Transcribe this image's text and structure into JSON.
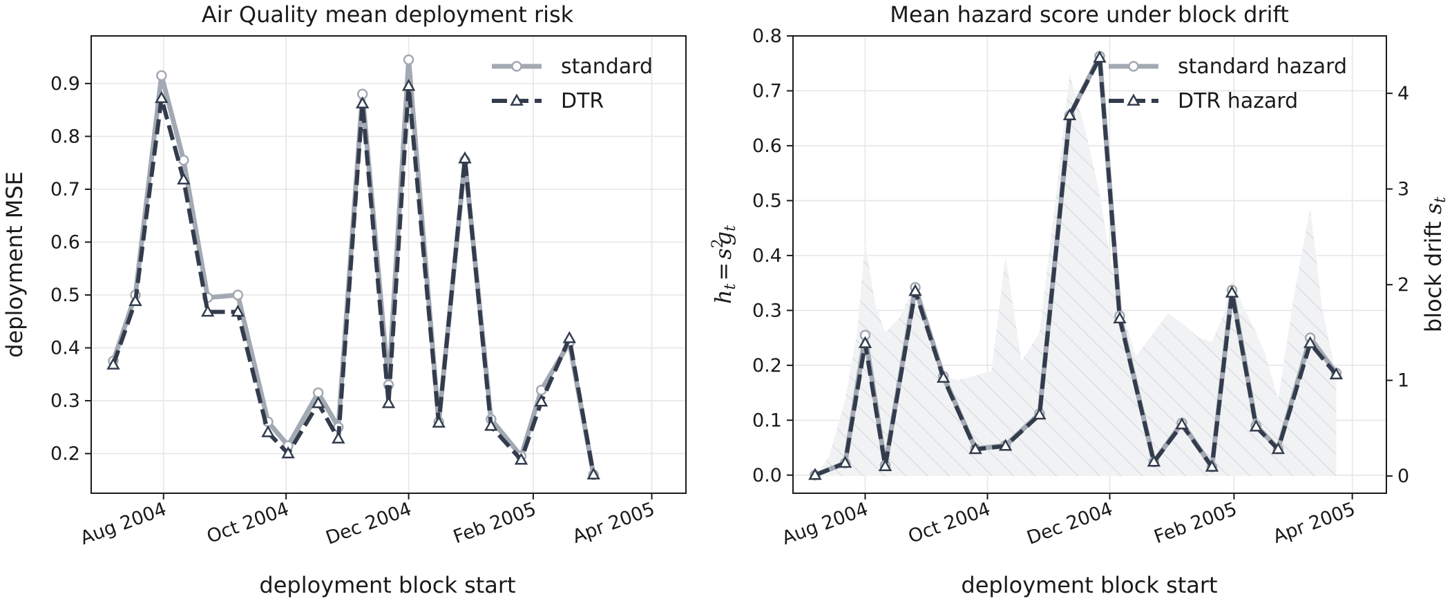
{
  "chart_data": [
    {
      "type": "line",
      "title": "Air Quality mean deployment risk",
      "xlabel": "deployment block start",
      "ylabel": "deployment MSE",
      "x_tick_labels": [
        "Aug 2004",
        "Oct 2004",
        "Dec 2004",
        "Feb 2005",
        "Apr 2005"
      ],
      "x_tick_dates": [
        "2004-08-01",
        "2004-10-01",
        "2004-12-01",
        "2005-02-01",
        "2005-04-01"
      ],
      "xlim": [
        "2004-06-26",
        "2005-04-18"
      ],
      "ylim": [
        0.125,
        0.99
      ],
      "y_ticks": [
        0.2,
        0.3,
        0.4,
        0.5,
        0.6,
        0.7,
        0.8,
        0.9
      ],
      "grid": true,
      "legend": "top-right",
      "series": [
        {
          "name": "standard",
          "color": "#a3a9b3",
          "marker": "circle",
          "dash": "solid",
          "x": [
            "2004-07-07",
            "2004-07-18",
            "2004-07-31",
            "2004-08-11",
            "2004-08-23",
            "2004-09-07",
            "2004-09-22",
            "2004-10-02",
            "2004-10-17",
            "2004-10-27",
            "2004-11-08",
            "2004-11-21",
            "2004-12-01",
            "2004-12-16",
            "2004-12-29",
            "2005-01-11",
            "2005-01-26",
            "2005-02-05",
            "2005-02-19",
            "2005-03-03",
            "2005-03-16",
            "2005-03-30"
          ],
          "y": [
            0.375,
            0.5,
            0.915,
            0.755,
            0.495,
            0.5,
            0.26,
            0.215,
            0.315,
            0.25,
            0.88,
            0.33,
            0.945,
            0.26,
            0.755,
            0.265,
            0.195,
            0.32,
            0.41,
            0.16,
            null,
            null
          ]
        },
        {
          "name": "DTR",
          "color": "#323c4c",
          "marker": "triangle",
          "dash": "dashed",
          "x": [
            "2004-07-07",
            "2004-07-18",
            "2004-07-31",
            "2004-08-11",
            "2004-08-23",
            "2004-09-07",
            "2004-09-22",
            "2004-10-02",
            "2004-10-17",
            "2004-10-27",
            "2004-11-08",
            "2004-11-21",
            "2004-12-01",
            "2004-12-16",
            "2004-12-29",
            "2005-01-11",
            "2005-01-26",
            "2005-02-05",
            "2005-02-19",
            "2005-03-03",
            "2005-03-16",
            "2005-03-30"
          ],
          "y": [
            0.368,
            0.488,
            0.872,
            0.718,
            0.468,
            0.468,
            0.24,
            0.2,
            0.295,
            0.228,
            0.862,
            0.295,
            0.895,
            0.258,
            0.758,
            0.252,
            0.188,
            0.298,
            0.418,
            0.16,
            null,
            null
          ]
        }
      ]
    },
    {
      "type": "line",
      "title": "Mean hazard score under block drift",
      "xlabel": "deployment block start",
      "ylabel": "h_t = s_t^2 g_t",
      "ylabel_parts": {
        "h": "h",
        "t": "t",
        "eq": "=",
        "s": "s",
        "sq": "2",
        "g": "g"
      },
      "y2label": "block drift s_t",
      "y2label_parts": {
        "text": "block drift ",
        "s": "s",
        "t": "t"
      },
      "x_tick_labels": [
        "Aug 2004",
        "Oct 2004",
        "Dec 2004",
        "Feb 2005",
        "Apr 2005"
      ],
      "x_tick_dates": [
        "2004-08-01",
        "2004-10-01",
        "2004-12-01",
        "2005-02-01",
        "2005-04-01"
      ],
      "xlim": [
        "2004-06-26",
        "2005-04-18"
      ],
      "ylim": [
        -0.033,
        0.8
      ],
      "y_ticks": [
        0.0,
        0.1,
        0.2,
        0.3,
        0.4,
        0.5,
        0.6,
        0.7,
        0.8
      ],
      "y2lim": [
        -0.18,
        4.6
      ],
      "y2_ticks": [
        0,
        1,
        2,
        3,
        4
      ],
      "grid": true,
      "legend": "top-right",
      "series": [
        {
          "name": "standard hazard",
          "color": "#a3a9b3",
          "marker": "circle",
          "dash": "solid",
          "x": [
            "2004-07-07",
            "2004-07-22",
            "2004-08-01",
            "2004-08-11",
            "2004-08-26",
            "2004-09-09",
            "2004-09-25",
            "2004-10-10",
            "2004-10-27",
            "2004-11-11",
            "2004-11-26",
            "2004-12-06",
            "2004-12-23",
            "2005-01-06",
            "2005-01-21",
            "2005-01-31",
            "2005-02-12",
            "2005-02-23",
            "2005-03-11",
            "2005-03-24"
          ],
          "y": [
            0.0,
            0.022,
            0.255,
            0.018,
            0.342,
            0.18,
            0.048,
            0.054,
            0.112,
            0.655,
            0.763,
            0.29,
            0.024,
            0.095,
            0.015,
            0.337,
            0.09,
            0.048,
            0.25,
            0.186
          ]
        },
        {
          "name": "DTR hazard",
          "color": "#323c4c",
          "marker": "triangle",
          "dash": "dashed",
          "x": [
            "2004-07-07",
            "2004-07-22",
            "2004-08-01",
            "2004-08-11",
            "2004-08-26",
            "2004-09-09",
            "2004-09-25",
            "2004-10-10",
            "2004-10-27",
            "2004-11-11",
            "2004-11-26",
            "2004-12-06",
            "2004-12-23",
            "2005-01-06",
            "2005-01-21",
            "2005-01-31",
            "2005-02-12",
            "2005-02-23",
            "2005-03-11",
            "2005-03-24"
          ],
          "y": [
            0.0,
            0.022,
            0.24,
            0.016,
            0.335,
            0.177,
            0.047,
            0.053,
            0.11,
            0.655,
            0.76,
            0.285,
            0.024,
            0.092,
            0.015,
            0.332,
            0.088,
            0.047,
            0.24,
            0.183
          ]
        }
      ],
      "area_series": {
        "axis": "right",
        "color": "#9aa3ae",
        "hatch": true,
        "x": [
          "2004-07-07",
          "2004-07-14",
          "2004-07-22",
          "2004-07-28",
          "2004-08-01",
          "2004-08-06",
          "2004-08-11",
          "2004-08-18",
          "2004-08-26",
          "2004-09-02",
          "2004-09-09",
          "2004-09-16",
          "2004-09-25",
          "2004-10-03",
          "2004-10-10",
          "2004-10-18",
          "2004-10-27",
          "2004-11-04",
          "2004-11-11",
          "2004-11-19",
          "2004-11-26",
          "2004-12-01",
          "2004-12-06",
          "2004-12-14",
          "2004-12-23",
          "2004-12-30",
          "2005-01-06",
          "2005-01-14",
          "2005-01-21",
          "2005-01-27",
          "2005-01-31",
          "2005-02-06",
          "2005-02-12",
          "2005-02-17",
          "2005-02-23",
          "2005-03-03",
          "2005-03-11",
          "2005-03-17",
          "2005-03-24"
        ],
        "y": [
          0.0,
          0.2,
          0.8,
          1.5,
          2.45,
          1.8,
          1.5,
          1.65,
          2.0,
          1.4,
          1.05,
          1.0,
          1.05,
          1.1,
          2.3,
          1.2,
          1.5,
          2.9,
          4.2,
          3.6,
          2.95,
          2.3,
          1.8,
          1.25,
          1.5,
          1.7,
          1.6,
          1.45,
          1.4,
          1.7,
          2.05,
          1.75,
          1.5,
          1.25,
          0.8,
          1.9,
          2.8,
          1.75,
          1.05
        ]
      }
    }
  ]
}
